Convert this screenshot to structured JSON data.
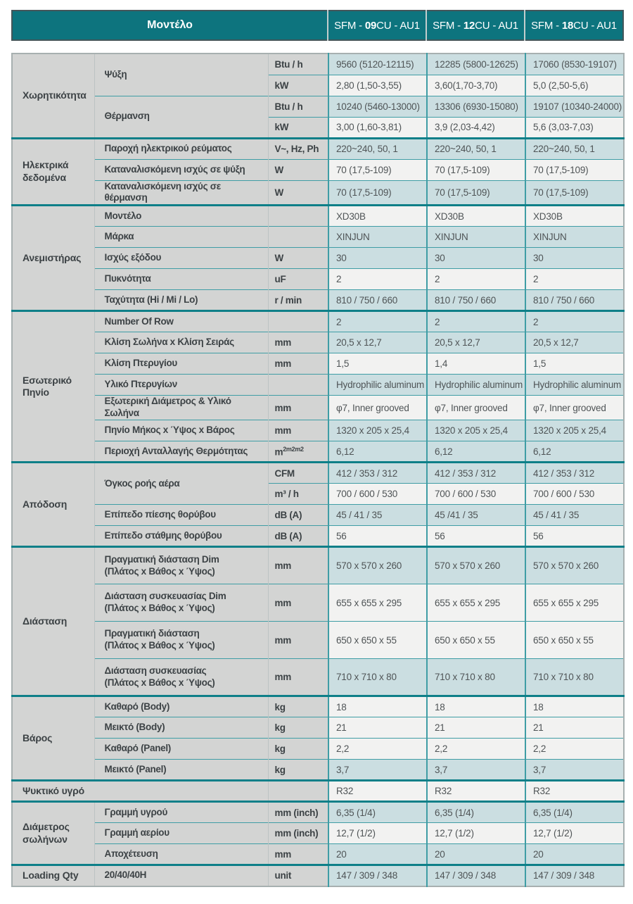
{
  "colors": {
    "header_bg": "#0d747e",
    "header_text": "#ffffff",
    "label_bg": "#d3d4d3",
    "row_teal": "#cbdee1",
    "row_white": "#f2f2f1",
    "grid_line": "#3f9da5",
    "section_divider": "#0e7f88",
    "frame": "#a7b0b0",
    "text": "#4f5456",
    "label_text": "#3c4245"
  },
  "header": {
    "model_label": "Μοντέλο",
    "models": [
      {
        "pre": "SFM - ",
        "bold": "09",
        "post": "CU - AU1"
      },
      {
        "pre": "SFM - ",
        "bold": "12",
        "post": "CU - AU1"
      },
      {
        "pre": "SFM - ",
        "bold": "18",
        "post": "CU - AU1"
      }
    ]
  },
  "table": {
    "sections": [
      {
        "category": "Χωρητικότητα",
        "rows": [
          {
            "label": "Ψύξη",
            "rowspan": 2,
            "unit": "Btu / h",
            "tone": "teal",
            "values": [
              "9560 (5120-12115)",
              "12285 (5800-12625)",
              "17060 (8530-19107)"
            ]
          },
          {
            "cont": true,
            "unit": "kW",
            "tone": "white",
            "values": [
              "2,80 (1,50-3,55)",
              "3,60(1,70-3,70)",
              "5,0 (2,50-5,6)"
            ]
          },
          {
            "label": "Θέρμανση",
            "rowspan": 2,
            "unit": "Btu / h",
            "tone": "teal",
            "values": [
              "10240 (5460-13000)",
              "13306 (6930-15080)",
              "19107 (10340-24000)"
            ]
          },
          {
            "cont": true,
            "unit": "kW",
            "tone": "white",
            "values": [
              "3,00 (1,60-3,81)",
              "3,9 (2,03-4,42)",
              "5,6 (3,03-7,03)"
            ]
          }
        ]
      },
      {
        "category": "Ηλεκτρικά\nδεδομένα",
        "rows": [
          {
            "label": "Παροχή ηλεκτρικού ρεύματος",
            "unit": "V~, Hz, Ph",
            "tone": "teal",
            "values": [
              "220~240, 50, 1",
              "220~240, 50, 1",
              "220~240, 50, 1"
            ]
          },
          {
            "label": "Καταναλισκόμενη ισχύς σε ψύξη",
            "unit": "W",
            "tone": "white",
            "values": [
              "70 (17,5-109)",
              "70 (17,5-109)",
              "70 (17,5-109)"
            ]
          },
          {
            "label": "Καταναλισκόμενη ισχύς σε θέρμανση",
            "unit": "W",
            "tone": "teal",
            "values": [
              "70 (17,5-109)",
              "70 (17,5-109)",
              "70 (17,5-109)"
            ]
          }
        ]
      },
      {
        "category": "Ανεμιστήρας",
        "rows": [
          {
            "label": "Μοντέλο",
            "unit": "",
            "tone": "white",
            "values": [
              "XD30B",
              "XD30B",
              "XD30B"
            ]
          },
          {
            "label": "Μάρκα",
            "unit": "",
            "tone": "teal",
            "values": [
              "XINJUN",
              "XINJUN",
              "XINJUN"
            ]
          },
          {
            "label": "Ισχύς εξόδου",
            "unit": "W",
            "tone": "teal",
            "values": [
              "30",
              "30",
              "30"
            ]
          },
          {
            "label": "Πυκνότητα",
            "unit": "uF",
            "tone": "white",
            "values": [
              "2",
              "2",
              "2"
            ]
          },
          {
            "label": "Ταχύτητα (Hi / Mi / Lo)",
            "unit": "r / min",
            "tone": "teal",
            "values": [
              "810 / 750 / 660",
              "810 / 750 / 660",
              "810 / 750 / 660"
            ]
          }
        ]
      },
      {
        "category": "Εσωτερικό\nΠηνίο",
        "rows": [
          {
            "label": "Number Of Row",
            "unit": "",
            "tone": "teal",
            "values": [
              "2",
              "2",
              "2"
            ]
          },
          {
            "label": "Κλίση Σωλήνα x Κλίση Σειράς",
            "unit": "mm",
            "tone": "teal",
            "values": [
              "20,5 x 12,7",
              "20,5 x 12,7",
              "20,5 x 12,7"
            ]
          },
          {
            "label": "Κλίση Πτερυγίου",
            "unit": "mm",
            "tone": "white",
            "values": [
              "1,5",
              "1,4",
              "1,5"
            ]
          },
          {
            "label": "Υλικό Πτερυγίων",
            "unit": "",
            "tone": "teal",
            "values": [
              "Hydrophilic aluminum",
              "Hydrophilic aluminum",
              "Hydrophilic aluminum"
            ]
          },
          {
            "label": "Εξωτερική Διάμετρος & Υλικό Σωλήνα",
            "unit": "mm",
            "tone": "white",
            "values": [
              "φ7, Inner grooved",
              "φ7, Inner grooved",
              "φ7, Inner grooved"
            ]
          },
          {
            "label": "Πηνίο Μήκος x Ύψος x Βάρος",
            "unit": "mm",
            "tone": "teal",
            "values": [
              "1320 x 205 x 25,4",
              "1320 x 205 x 25,4",
              "1320 x 205 x 25,4"
            ]
          },
          {
            "label": "Περιοχή Ανταλλαγής Θερμότητας",
            "unit": "m",
            "unitSup": "2m2m2",
            "tone": "teal",
            "values": [
              "6,12",
              "6,12",
              "6,12"
            ]
          }
        ]
      },
      {
        "category": "Απόδοση",
        "rows": [
          {
            "label": "Όγκος ροής αέρα",
            "rowspan": 2,
            "unit": "CFM",
            "tone": "teal",
            "values": [
              "412 / 353 / 312",
              "412 / 353 / 312",
              "412 / 353 / 312"
            ]
          },
          {
            "cont": true,
            "unit": "m³ / h",
            "tone": "white",
            "values": [
              "700 / 600 / 530",
              "700 / 600 / 530",
              "700 / 600 / 530"
            ]
          },
          {
            "label": "Επίπεδο πίεσης θορύβου",
            "unit": "dB (A)",
            "tone": "teal",
            "values": [
              "45 / 41 / 35",
              "45 /41 / 35",
              "45 / 41 / 35"
            ]
          },
          {
            "label": "Επίπεδο στάθμης θορύβου",
            "unit": "dB (A)",
            "tone": "white",
            "values": [
              "56",
              "56",
              "56"
            ]
          }
        ]
      },
      {
        "category": "Διάσταση",
        "rows": [
          {
            "label": "Πραγματική διάσταση Dim",
            "label2": "(Πλάτος x Βάθος x Ύψος)",
            "tall": true,
            "unit": "mm",
            "tone": "teal",
            "values": [
              "570 x 570 x 260",
              "570 x 570 x 260",
              "570 x 570 x 260"
            ]
          },
          {
            "label": "Διάσταση συσκευασίας Dim",
            "label2": "(Πλάτος x Βάθος x Ύψος)",
            "tall": true,
            "unit": "mm",
            "tone": "white",
            "values": [
              "655 x 655 x 295",
              "655 x 655 x 295",
              "655 x 655 x 295"
            ]
          },
          {
            "label": "Πραγματική διάσταση",
            "label2": "(Πλάτος x Βάθος x Ύψος)",
            "tall": true,
            "unit": "mm",
            "tone": "white",
            "values": [
              "650 x 650 x 55",
              "650 x 650 x 55",
              "650 x 650 x 55"
            ]
          },
          {
            "label": "Διάσταση συσκευασίας",
            "label2": "(Πλάτος x Βάθος x Ύψος)",
            "tall": true,
            "unit": "mm",
            "tone": "teal",
            "values": [
              "710 x 710 x 80",
              "710 x 710 x 80",
              "710 x 710 x 80"
            ]
          }
        ]
      },
      {
        "category": "Βάρος",
        "rows": [
          {
            "label": "Καθαρό (Body)",
            "unit": "kg",
            "tone": "white",
            "values": [
              "18",
              "18",
              "18"
            ]
          },
          {
            "label": "Μεικτό (Body)",
            "unit": "kg",
            "tone": "white",
            "values": [
              "21",
              "21",
              "21"
            ]
          },
          {
            "label": "Καθαρό (Panel)",
            "unit": "kg",
            "tone": "white",
            "values": [
              "2,2",
              "2,2",
              "2,2"
            ]
          },
          {
            "label": "Μεικτό (Panel)",
            "unit": "kg",
            "tone": "teal",
            "values": [
              "3,7",
              "3,7",
              "3,7"
            ]
          }
        ]
      },
      {
        "category": "Ψυκτικό υγρό",
        "merged": true,
        "rows": [
          {
            "unit": "",
            "tone": "white",
            "values": [
              "R32",
              "R32",
              "R32"
            ]
          }
        ]
      },
      {
        "category": "Διάμετρος\nσωλήνων",
        "rows": [
          {
            "label": "Γραμμή υγρού",
            "unit": "mm (inch)",
            "tone": "teal",
            "values": [
              "6,35 (1/4)",
              "6,35 (1/4)",
              "6,35 (1/4)"
            ]
          },
          {
            "label": "Γραμμή αερίου",
            "unit": "mm (inch)",
            "tone": "white",
            "values": [
              "12,7 (1/2)",
              "12,7 (1/2)",
              "12,7 (1/2)"
            ]
          },
          {
            "label": "Αποχέτευση",
            "unit": "mm",
            "tone": "teal",
            "values": [
              "20",
              "20",
              "20"
            ]
          }
        ]
      },
      {
        "category": "Loading Qty",
        "rows": [
          {
            "label": "20/40/40H",
            "unit": "unit",
            "tone": "teal",
            "values": [
              "147 / 309 / 348",
              "147 / 309 / 348",
              "147 / 309 / 348"
            ]
          }
        ]
      }
    ]
  }
}
